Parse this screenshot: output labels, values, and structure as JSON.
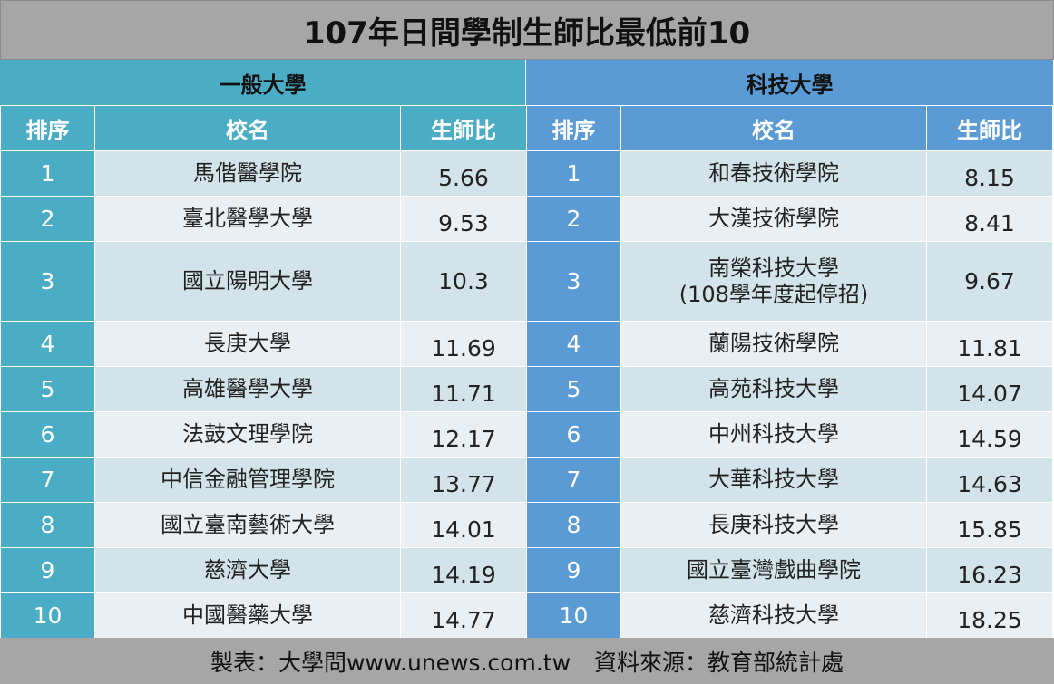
{
  "title": "107年日間學制生師比最低前10",
  "left": {
    "section": "一般大學",
    "headers": {
      "rank": "排序",
      "name": "校名",
      "ratio": "生師比"
    },
    "rows": [
      {
        "rank": "1",
        "name": "馬偕醫學院",
        "ratio": "5.66"
      },
      {
        "rank": "2",
        "name": "臺北醫學大學",
        "ratio": "9.53"
      },
      {
        "rank": "3",
        "name": "國立陽明大學",
        "ratio": "10.3"
      },
      {
        "rank": "4",
        "name": "長庚大學",
        "ratio": "11.69"
      },
      {
        "rank": "5",
        "name": "高雄醫學大學",
        "ratio": "11.71"
      },
      {
        "rank": "6",
        "name": "法鼓文理學院",
        "ratio": "12.17"
      },
      {
        "rank": "7",
        "name": "中信金融管理學院",
        "ratio": "13.77"
      },
      {
        "rank": "8",
        "name": "國立臺南藝術大學",
        "ratio": "14.01"
      },
      {
        "rank": "9",
        "name": "慈濟大學",
        "ratio": "14.19"
      },
      {
        "rank": "10",
        "name": "中國醫藥大學",
        "ratio": "14.77"
      }
    ]
  },
  "right": {
    "section": "科技大學",
    "headers": {
      "rank": "排序",
      "name": "校名",
      "ratio": "生師比"
    },
    "rows": [
      {
        "rank": "1",
        "name": "和春技術學院",
        "ratio": "8.15"
      },
      {
        "rank": "2",
        "name": "大漢技術學院",
        "ratio": "8.41"
      },
      {
        "rank": "3",
        "name": "南榮科技大學",
        "note": "(108學年度起停招)",
        "ratio": "9.67"
      },
      {
        "rank": "4",
        "name": "蘭陽技術學院",
        "ratio": "11.81"
      },
      {
        "rank": "5",
        "name": "高苑科技大學",
        "ratio": "14.07"
      },
      {
        "rank": "6",
        "name": "中州科技大學",
        "ratio": "14.59"
      },
      {
        "rank": "7",
        "name": "大華科技大學",
        "ratio": "14.63"
      },
      {
        "rank": "8",
        "name": "長庚科技大學",
        "ratio": "15.85"
      },
      {
        "rank": "9",
        "name": "國立臺灣戲曲學院",
        "ratio": "16.23"
      },
      {
        "rank": "10",
        "name": "慈濟科技大學",
        "ratio": "18.25"
      }
    ]
  },
  "footer": {
    "maker": "製表：大學問www.unews.com.tw",
    "source": "資料來源：教育部統計處"
  }
}
